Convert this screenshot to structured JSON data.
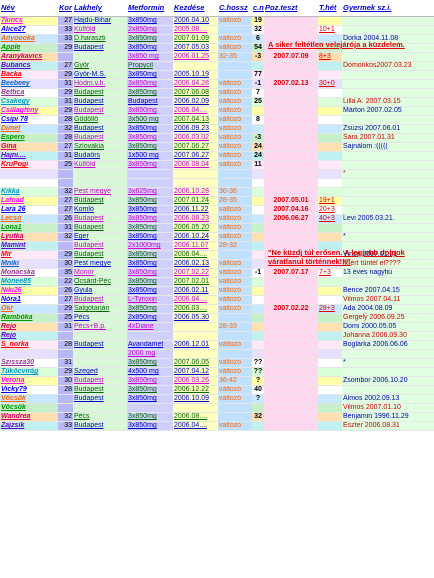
{
  "headers": [
    "Név",
    "Kor",
    "Lakhely",
    "Metformin",
    "Kezdése",
    "C.hossz",
    "c.n",
    "Poz.teszt",
    "T.hét",
    "Gyermek sz.i."
  ],
  "rows": [
    {
      "nev": "7kincs",
      "kor": "27",
      "lak": "Hajdú-Bihar",
      "met": "3x850mg",
      "kez": "2006.04.10",
      "ch": "változó",
      "cn": "19",
      "poz": "",
      "thet": "",
      "gy": ""
    },
    {
      "nev": "Alice27",
      "kor": "33",
      "lak": "Külföld",
      "met": "2x850mg",
      "kez": "2005.08....",
      "ch": "",
      "cn": "32",
      "poz": "",
      "thet": "10+1",
      "gy": ""
    },
    {
      "nev": "Anyoooka",
      "kor": "33",
      "lak": "D.haraszti",
      "met": "3x850mg",
      "kez": "2007.01.09",
      "ch": "változó",
      "cn": "6",
      "poz": "",
      "thet": "",
      "gy": "Dorka 2004.11.08"
    },
    {
      "nev": "Apple",
      "kor": "29",
      "lak": "Budapest",
      "met": "3x850mg",
      "kez": "2007.05.03",
      "ch": "változó",
      "cn": "54",
      "poz": "",
      "thet": "",
      "gy": ""
    },
    {
      "nev": "Aranykavics",
      "kor": "",
      "lak": "",
      "met": "3x850 mg",
      "kez": "2006.01.25",
      "ch": "32-35",
      "cn": "-3",
      "poz": "2007.07.09",
      "thet": "8+3",
      "gy": ""
    },
    {
      "nev": "Bubancs",
      "kor": "27",
      "lak": "Győr",
      "met": "Propycil",
      "kez": "",
      "ch": "",
      "cn": "",
      "poz": "",
      "thet": "",
      "gy": "Domonkos2007.03.23"
    },
    {
      "nev": "Backa",
      "kor": "29",
      "lak": "Győr-M.S.",
      "met": "3x850mg",
      "kez": "2005.10.19",
      "ch": "",
      "cn": "77",
      "poz": "",
      "thet": "",
      "gy": ""
    },
    {
      "nev": "Beebeey",
      "kor": "31",
      "lak": "Hódm.v.h.",
      "met": "3x850mg",
      "kez": "2006.04.28",
      "ch": "változó",
      "cn": "-1",
      "poz": "2007.02.13",
      "thet": "30+0",
      "gy": ""
    },
    {
      "nev": "Bettica",
      "kor": "29",
      "lak": "Budapest",
      "met": "3x850mg",
      "kez": "2007.06.08",
      "ch": "változó",
      "cn": "7",
      "poz": "",
      "thet": "",
      "gy": ""
    },
    {
      "nev": "Csakegy",
      "kor": "31",
      "lak": "Budapest",
      "met": "Budapest",
      "kez": "2006.02.09",
      "ch": "változó",
      "cn": "25",
      "poz": "",
      "thet": "",
      "gy": "Lilla A. 2007.03.15"
    },
    {
      "nev": "Csillagfény",
      "kor": "29",
      "lak": "Budapest",
      "met": "3x850mg",
      "kez": "2006.04....",
      "ch": "változó",
      "cn": "",
      "poz": "",
      "thet": "",
      "gy": "Márton 2007.02.05"
    },
    {
      "nev": "Csipi 78",
      "kor": "28",
      "lak": "Gödöllő",
      "met": "3x500 mg",
      "kez": "2007.04.13",
      "ch": "változó",
      "cn": "8",
      "poz": "",
      "thet": "",
      "gy": ""
    },
    {
      "nev": "Dimet",
      "kor": "32",
      "lak": "Budapest",
      "met": "3x850mg",
      "kez": "2006.09.23",
      "ch": "változó",
      "cn": "",
      "poz": "",
      "thet": "",
      "gy": "Zsuzsi 2007.06.01"
    },
    {
      "nev": "Espero",
      "kor": "28",
      "lak": "Budapest",
      "met": "3x850mg",
      "kez": "2006.03.02",
      "ch": "változó",
      "cn": "-3",
      "poz": "",
      "thet": "",
      "gy": "Sára 2007.01.31"
    },
    {
      "nev": "Gina",
      "kor": "27",
      "lak": "Szlovákia",
      "met": "3x850mg",
      "kez": "2007.06.27",
      "ch": "változó",
      "cn": "24",
      "poz": "",
      "thet": "",
      "gy": "Sajnálom :((((("
    },
    {
      "nev": "Hajni....",
      "kor": "31",
      "lak": "Budaörs",
      "met": "1x500 mg",
      "kez": "2007.06.27",
      "ch": "változó",
      "cn": "24",
      "poz": "",
      "thet": "",
      "gy": ""
    },
    {
      "nev": "KruPogi",
      "kor": "25",
      "lak": "Külföld",
      "met": "3x850mg",
      "kez": "2006.08.04",
      "ch": "változó",
      "cn": "11",
      "poz": "",
      "thet": "",
      "gy": ""
    },
    {
      "nev": "",
      "kor": "",
      "lak": "",
      "met": "",
      "kez": "",
      "ch": "",
      "cn": "",
      "poz": "",
      "thet": "",
      "gy": "*"
    },
    {
      "nev": "",
      "kor": "",
      "lak": "",
      "met": "",
      "kez": "",
      "ch": "",
      "cn": "",
      "poz": "",
      "thet": "",
      "gy": ""
    },
    {
      "nev": "Kikka",
      "kor": "32",
      "lak": "Pest megye",
      "met": "3x625mg",
      "kez": "2006.10.28",
      "ch": "30-36",
      "cn": "",
      "poz": "",
      "thet": "",
      "gy": ""
    },
    {
      "nev": "Lafoad",
      "kor": "27",
      "lak": "Budapest",
      "met": "3x850mg",
      "kez": "2007.01.24",
      "ch": "28-35",
      "cn": "",
      "poz": "2007.05.01",
      "thet": "19+1",
      "gy": ""
    },
    {
      "nev": "Lara 26",
      "kor": "27",
      "lak": "Komló",
      "met": "3x850mg",
      "kez": "2006.11.22",
      "ch": "változó",
      "cn": "",
      "poz": "2007.04.16",
      "thet": "20+3",
      "gy": ""
    },
    {
      "nev": "Lecsó",
      "kor": "26",
      "lak": "Budapest",
      "met": "3x850mg",
      "kez": "2006.08.23",
      "ch": "változó",
      "cn": "",
      "poz": "2006.06.27",
      "thet": "40+3",
      "gy": "Levi 2005.03.21."
    },
    {
      "nev": "Lona1",
      "kor": "31",
      "lak": "Budapest",
      "met": "3x850mg",
      "kez": "2006.05.20",
      "ch": "változó",
      "cn": "",
      "poz": "",
      "thet": "",
      "gy": ""
    },
    {
      "nev": "Lyutka",
      "kor": "32",
      "lak": "Eger",
      "met": "3x850mg",
      "kez": "2006.10.24",
      "ch": "változó",
      "cn": "",
      "poz": "",
      "thet": "",
      "gy": "*"
    },
    {
      "nev": "Mamint",
      "kor": "",
      "lak": "Budapest",
      "met": "2x1000mg",
      "kez": "2006.11.07",
      "ch": "28-32",
      "cn": "",
      "poz": "",
      "thet": "",
      "gy": ""
    },
    {
      "nev": "Mir",
      "kor": "29",
      "lak": "Budapest",
      "met": "3x850mg",
      "kez": "2006.04....",
      "ch": "",
      "cn": "",
      "poz": "",
      "thet": "",
      "gy": "Vince 2007.01.21"
    },
    {
      "nev": "Mniki",
      "kor": "30",
      "lak": "Pest megye",
      "met": "3x850mg",
      "kez": "2006.02.13",
      "ch": "változó",
      "cn": "",
      "poz": "",
      "thet": "",
      "gy": "Miért tűntél el????"
    },
    {
      "nev": "Monácska",
      "kor": "35",
      "lak": "Monor",
      "met": "3x850mg",
      "kez": "2007.02.22",
      "ch": "változó",
      "cn": "-1",
      "poz": "2007.07.17",
      "thet": "7+3",
      "gy": "13 éves nagyfiú"
    },
    {
      "nev": "Monee85",
      "kor": "22",
      "lak": "Öcsárd-Péc",
      "met": "3x850mg",
      "kez": "2007.02.01",
      "ch": "változó",
      "cn": "",
      "poz": "",
      "thet": "",
      "gy": ""
    },
    {
      "nev": "Niki26",
      "kor": "26",
      "lak": "Gyula",
      "met": "3x850mg",
      "kez": "2006.02.11",
      "ch": "változó",
      "cn": "",
      "poz": "",
      "thet": "",
      "gy": "Bence 2007.04.15"
    },
    {
      "nev": "Nóra1",
      "kor": "27",
      "lak": "Budapest",
      "met": "L-Tyroxin",
      "kez": "2006.04....",
      "ch": "változó",
      "cn": "",
      "poz": "",
      "thet": "",
      "gy": "Vilmos 2007.04.11"
    },
    {
      "nev": "Okr",
      "kor": "29",
      "lak": "Salgótarján",
      "met": "3x850mg",
      "kez": "2006.03....",
      "ch": "változó",
      "cn": "",
      "poz": "2007.02.22",
      "thet": "28+3",
      "gy": "Ada 2004.08.09"
    },
    {
      "nev": "Rambóka",
      "kor": "25",
      "lak": "Pécs",
      "met": "2x850mg",
      "kez": "2006.05.30",
      "ch": "",
      "cn": "",
      "poz": "",
      "thet": "",
      "gy": "Gergely 2006.09.25"
    },
    {
      "nev": "Rejo",
      "kor": "31",
      "lak": "Pécs+B.p.",
      "met": "4xDiane",
      "kez": "",
      "ch": "28-33",
      "cn": "",
      "poz": "",
      "thet": "",
      "gy": "Domi 2000.05.05"
    },
    {
      "nev": "Rejo",
      "kor": "",
      "lak": "",
      "met": "",
      "kez": "",
      "ch": "",
      "cn": "",
      "poz": "",
      "thet": "",
      "gy": "Johanna 2006.09.30"
    },
    {
      "nev": "S_norka",
      "kor": "28",
      "lak": "Budapest",
      "met": "Avandamet",
      "kez": "2006.12.01",
      "ch": "változó",
      "cn": "",
      "poz": "",
      "thet": "",
      "gy": "Boglárka 2006.06.06"
    },
    {
      "nev": "",
      "kor": "",
      "lak": "",
      "met": "2000 mg",
      "kez": "",
      "ch": "",
      "cn": "",
      "poz": "",
      "thet": "",
      "gy": ""
    },
    {
      "nev": "Szissza30",
      "kor": "31",
      "lak": "",
      "met": "3x850mg",
      "kez": "2007.06.05",
      "ch": "változó",
      "cn": "??",
      "poz": "",
      "thet": "",
      "gy": "*"
    },
    {
      "nev": "Tüköcvirág",
      "kor": "29",
      "lak": "Szeged",
      "met": "4x500 mg",
      "kez": "2007.04.12",
      "ch": "változó",
      "cn": "??",
      "poz": "",
      "thet": "",
      "gy": ""
    },
    {
      "nev": "Verona",
      "kor": "30",
      "lak": "Budapest",
      "met": "3x850mg",
      "kez": "2006.03.26",
      "ch": "36-42",
      "cn": "?",
      "poz": "",
      "thet": "",
      "gy": "Zsombor 2006.10.20"
    },
    {
      "nev": "Vicky79",
      "kor": "28",
      "lak": "Budapest",
      "met": "3x850mg",
      "kez": "2006.12.22",
      "ch": "változó",
      "cn": "40",
      "poz": "",
      "thet": "",
      "gy": ""
    },
    {
      "nev": "Vöcsök",
      "kor": "",
      "lak": "Budapest",
      "met": "3x850mg",
      "kez": "2006.10.09",
      "ch": "változó",
      "cn": "?",
      "poz": "",
      "thet": "",
      "gy": "Álmos 2002.09.13"
    },
    {
      "nev": "Vöcsök",
      "kor": "",
      "lak": "",
      "met": "",
      "kez": "",
      "ch": "",
      "cn": "",
      "poz": "",
      "thet": "",
      "gy": "Vilmos 2007.01.10"
    },
    {
      "nev": "Wandrea",
      "kor": "32",
      "lak": "Pécs",
      "met": "3x850mg",
      "kez": "2006.08....",
      "ch": "",
      "cn": "32",
      "poz": "",
      "thet": "",
      "gy": "Benjamin 1996.11.29"
    },
    {
      "nev": "Zajzsik",
      "kor": "33",
      "lak": "Budapest",
      "met": "3x850mg",
      "kez": "2006.04....",
      "ch": "változó",
      "cn": "",
      "poz": "",
      "thet": "",
      "gy": "Eszter 2006.08.31"
    }
  ],
  "notes": {
    "n1": "A siker feltétlen velejárója a küzdelem.",
    "n2": "\"Ne küzdj túl erősen. A legjobb dolgok váratlanul történnek!!!\""
  },
  "colors": {
    "header": "#0000cc",
    "note": "#e00000"
  }
}
